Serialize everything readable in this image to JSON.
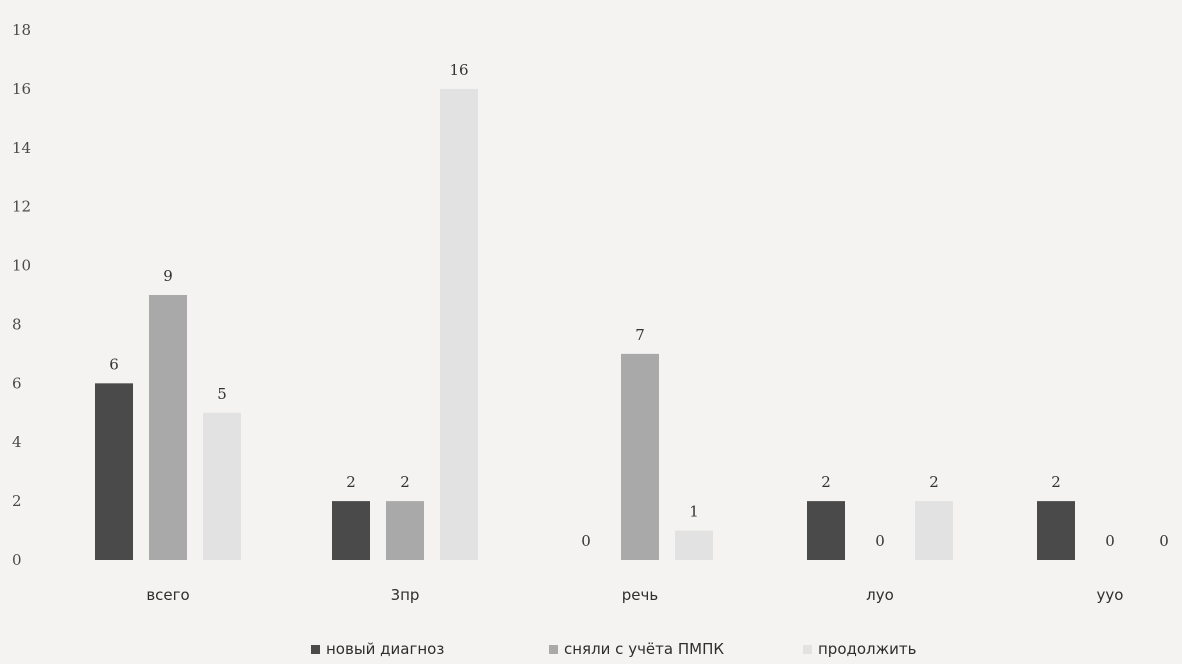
{
  "chart_data": {
    "type": "bar",
    "title": "",
    "xlabel": "",
    "ylabel": "",
    "ylim": [
      0,
      18
    ],
    "yticks": [
      0,
      2,
      4,
      6,
      8,
      10,
      12,
      14,
      16,
      18
    ],
    "grid": false,
    "legend_position": "bottom",
    "categories": [
      "всего",
      "3пр",
      "речь",
      "луо",
      "ууо"
    ],
    "series": [
      {
        "name": "новый диагноз",
        "color": "#4a4a4a",
        "values": [
          6,
          2,
          0,
          2,
          2
        ]
      },
      {
        "name": "сняли с учёта ПМПК",
        "color": "#a9a9a9",
        "values": [
          9,
          2,
          7,
          0,
          0
        ]
      },
      {
        "name": "продолжить",
        "color": "#e2e2e2",
        "values": [
          5,
          16,
          1,
          2,
          0
        ]
      }
    ]
  }
}
